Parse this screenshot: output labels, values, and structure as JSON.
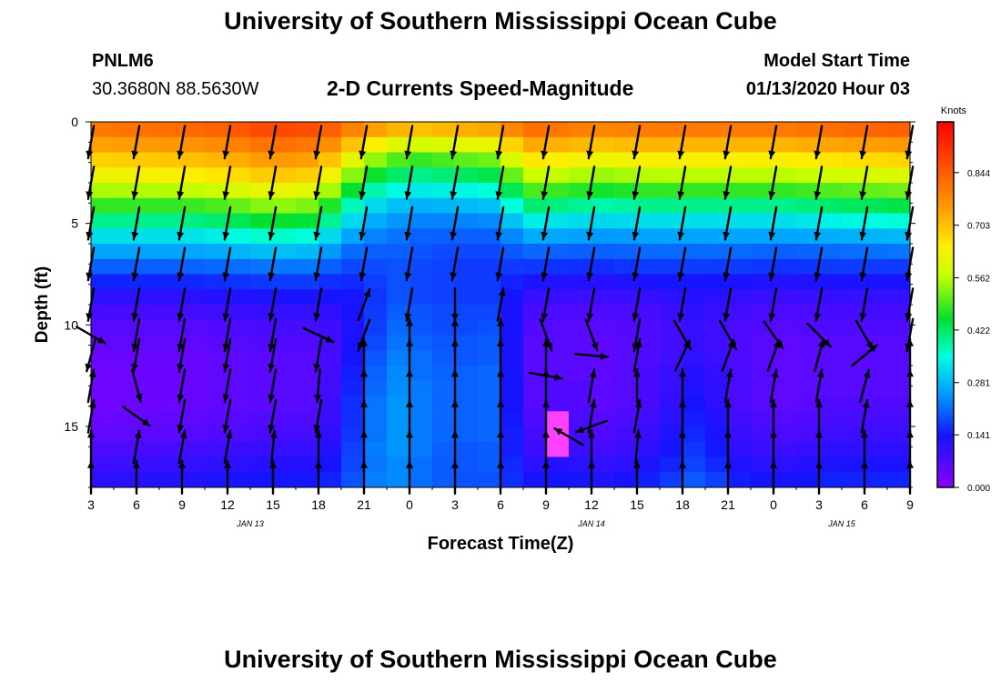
{
  "header": {
    "title_top": "University of Southern Mississippi Ocean Cube",
    "title_bottom": "University of Southern Mississippi Ocean Cube",
    "station_id": "PNLM6",
    "coords": "30.3680N 88.5630W",
    "subtitle": "2-D Currents Speed-Magnitude",
    "model_label": "Model Start Time",
    "model_time": "01/13/2020 Hour 03"
  },
  "chart_data": {
    "type": "heatmap",
    "title": "2-D Currents Speed-Magnitude",
    "xlabel": "Forecast Time(Z)",
    "ylabel": "Depth (ft)",
    "x_tick_labels": [
      "3",
      "6",
      "9",
      "12",
      "15",
      "18",
      "21",
      "0",
      "3",
      "6",
      "9",
      "12",
      "15",
      "18",
      "21",
      "0",
      "3",
      "6",
      "9"
    ],
    "date_labels": [
      {
        "label": "JAN 13",
        "tick_index": 3.5
      },
      {
        "label": "JAN 14",
        "tick_index": 11
      },
      {
        "label": "JAN 15",
        "tick_index": 16.5
      }
    ],
    "x_range_hours": [
      0,
      54
    ],
    "y_ticks": [
      0,
      5,
      10,
      15
    ],
    "ylim": [
      0,
      18
    ],
    "colorbar": {
      "unit": "Knots",
      "ticks": [
        0.0,
        0.141,
        0.281,
        0.422,
        0.562,
        0.703,
        0.844
      ],
      "tick_labels": [
        "0.000",
        "0.141",
        "0.281",
        "0.422",
        "0.562",
        "0.703",
        "0.844"
      ],
      "range": [
        0,
        0.98
      ]
    },
    "column_width_hours": 1.5,
    "depths": [
      0.375,
      1.125,
      1.875,
      2.625,
      3.375,
      4.125,
      4.875,
      5.625,
      6.375,
      7.125,
      7.875,
      8.625,
      9.375,
      10.125,
      10.875,
      11.625,
      12.375,
      13.125,
      13.875,
      14.625,
      15.375,
      16.125,
      16.875,
      17.625
    ],
    "profiles": [
      {
        "t": 0,
        "s": [
          0.8,
          0.74,
          0.68,
          0.62,
          0.55,
          0.48,
          0.4,
          0.32,
          0.26,
          0.2,
          0.15,
          0.11,
          0.08,
          0.06,
          0.05,
          0.04,
          0.03,
          0.03,
          0.03,
          0.04,
          0.05,
          0.07,
          0.09,
          0.11
        ]
      },
      {
        "t": 6,
        "s": [
          0.82,
          0.76,
          0.7,
          0.64,
          0.56,
          0.48,
          0.4,
          0.32,
          0.26,
          0.2,
          0.15,
          0.11,
          0.08,
          0.06,
          0.05,
          0.04,
          0.04,
          0.04,
          0.04,
          0.05,
          0.06,
          0.08,
          0.1,
          0.12
        ]
      },
      {
        "t": 9,
        "s": [
          0.84,
          0.78,
          0.72,
          0.66,
          0.58,
          0.5,
          0.42,
          0.34,
          0.27,
          0.21,
          0.16,
          0.12,
          0.09,
          0.07,
          0.06,
          0.05,
          0.05,
          0.05,
          0.05,
          0.06,
          0.07,
          0.09,
          0.11,
          0.13
        ]
      },
      {
        "t": 12,
        "s": [
          0.88,
          0.82,
          0.76,
          0.7,
          0.62,
          0.54,
          0.46,
          0.37,
          0.29,
          0.22,
          0.17,
          0.13,
          0.1,
          0.08,
          0.07,
          0.06,
          0.06,
          0.06,
          0.06,
          0.07,
          0.08,
          0.1,
          0.12,
          0.14
        ]
      },
      {
        "t": 15,
        "s": [
          0.86,
          0.8,
          0.74,
          0.68,
          0.6,
          0.52,
          0.44,
          0.35,
          0.28,
          0.22,
          0.17,
          0.13,
          0.1,
          0.08,
          0.07,
          0.06,
          0.06,
          0.06,
          0.06,
          0.07,
          0.08,
          0.1,
          0.12,
          0.14
        ]
      },
      {
        "t": 16.5,
        "s": [
          0.82,
          0.74,
          0.66,
          0.58,
          0.5,
          0.42,
          0.35,
          0.28,
          0.22,
          0.18,
          0.15,
          0.13,
          0.11,
          0.1,
          0.1,
          0.1,
          0.11,
          0.11,
          0.12,
          0.12,
          0.13,
          0.14,
          0.15,
          0.16
        ]
      },
      {
        "t": 18,
        "s": [
          0.76,
          0.66,
          0.56,
          0.48,
          0.4,
          0.33,
          0.28,
          0.24,
          0.2,
          0.18,
          0.16,
          0.15,
          0.15,
          0.15,
          0.16,
          0.17,
          0.18,
          0.19,
          0.2,
          0.2,
          0.2,
          0.21,
          0.21,
          0.22
        ]
      },
      {
        "t": 20,
        "s": [
          0.72,
          0.6,
          0.5,
          0.42,
          0.35,
          0.29,
          0.25,
          0.22,
          0.2,
          0.19,
          0.19,
          0.19,
          0.2,
          0.21,
          0.22,
          0.23,
          0.24,
          0.24,
          0.25,
          0.25,
          0.25,
          0.25,
          0.24,
          0.24
        ]
      },
      {
        "t": 22,
        "s": [
          0.7,
          0.58,
          0.48,
          0.4,
          0.33,
          0.27,
          0.23,
          0.2,
          0.19,
          0.18,
          0.18,
          0.18,
          0.19,
          0.19,
          0.2,
          0.21,
          0.21,
          0.22,
          0.22,
          0.22,
          0.22,
          0.22,
          0.21,
          0.21
        ]
      },
      {
        "t": 24,
        "s": [
          0.72,
          0.6,
          0.5,
          0.42,
          0.34,
          0.28,
          0.23,
          0.2,
          0.18,
          0.17,
          0.17,
          0.17,
          0.18,
          0.18,
          0.19,
          0.19,
          0.2,
          0.2,
          0.2,
          0.2,
          0.2,
          0.19,
          0.19,
          0.19
        ]
      },
      {
        "t": 27,
        "s": [
          0.74,
          0.62,
          0.52,
          0.44,
          0.36,
          0.29,
          0.24,
          0.2,
          0.18,
          0.17,
          0.17,
          0.17,
          0.18,
          0.19,
          0.2,
          0.2,
          0.21,
          0.21,
          0.21,
          0.21,
          0.21,
          0.2,
          0.2,
          0.19
        ]
      },
      {
        "t": 28.5,
        "s": [
          0.82,
          0.74,
          0.66,
          0.58,
          0.5,
          0.42,
          0.34,
          0.27,
          0.21,
          0.17,
          0.13,
          0.1,
          0.08,
          0.07,
          0.06,
          0.06,
          0.06,
          0.06,
          0.06,
          0.07,
          0.08,
          0.09,
          0.11,
          0.13
        ]
      },
      {
        "t": 31.5,
        "s": [
          0.8,
          0.72,
          0.64,
          0.56,
          0.48,
          0.4,
          0.32,
          0.26,
          0.2,
          0.16,
          0.12,
          0.09,
          0.07,
          0.06,
          0.06,
          0.06,
          0.06,
          0.07,
          0.07,
          0.08,
          0.09,
          0.1,
          0.12,
          0.14
        ]
      },
      {
        "t": 34,
        "s": [
          0.78,
          0.7,
          0.62,
          0.54,
          0.46,
          0.38,
          0.31,
          0.25,
          0.2,
          0.16,
          0.12,
          0.09,
          0.07,
          0.06,
          0.05,
          0.05,
          0.05,
          0.05,
          0.05,
          0.06,
          0.07,
          0.08,
          0.1,
          0.12
        ]
      },
      {
        "t": 37,
        "s": [
          0.8,
          0.72,
          0.64,
          0.56,
          0.48,
          0.4,
          0.32,
          0.26,
          0.21,
          0.17,
          0.13,
          0.1,
          0.08,
          0.07,
          0.07,
          0.07,
          0.08,
          0.08,
          0.08,
          0.09,
          0.1,
          0.11,
          0.13,
          0.15
        ]
      },
      {
        "t": 40,
        "s": [
          0.8,
          0.72,
          0.64,
          0.56,
          0.48,
          0.4,
          0.32,
          0.26,
          0.21,
          0.17,
          0.14,
          0.12,
          0.11,
          0.1,
          0.1,
          0.11,
          0.12,
          0.13,
          0.14,
          0.15,
          0.16,
          0.17,
          0.18,
          0.2
        ]
      },
      {
        "t": 43,
        "s": [
          0.8,
          0.72,
          0.64,
          0.56,
          0.48,
          0.4,
          0.32,
          0.26,
          0.21,
          0.17,
          0.13,
          0.1,
          0.08,
          0.07,
          0.07,
          0.07,
          0.07,
          0.07,
          0.07,
          0.08,
          0.09,
          0.1,
          0.12,
          0.14
        ]
      },
      {
        "t": 46,
        "s": [
          0.8,
          0.72,
          0.64,
          0.56,
          0.48,
          0.4,
          0.32,
          0.26,
          0.2,
          0.16,
          0.12,
          0.09,
          0.07,
          0.06,
          0.05,
          0.05,
          0.05,
          0.05,
          0.05,
          0.06,
          0.07,
          0.09,
          0.11,
          0.13
        ]
      },
      {
        "t": 49,
        "s": [
          0.82,
          0.74,
          0.66,
          0.58,
          0.5,
          0.42,
          0.34,
          0.27,
          0.21,
          0.17,
          0.13,
          0.1,
          0.08,
          0.07,
          0.06,
          0.06,
          0.06,
          0.06,
          0.07,
          0.08,
          0.09,
          0.11,
          0.13,
          0.15
        ]
      },
      {
        "t": 54,
        "s": [
          0.84,
          0.76,
          0.68,
          0.6,
          0.52,
          0.44,
          0.36,
          0.28,
          0.22,
          0.17,
          0.13,
          0.1,
          0.08,
          0.07,
          0.06,
          0.06,
          0.06,
          0.06,
          0.07,
          0.08,
          0.09,
          0.11,
          0.13,
          0.15
        ]
      }
    ],
    "magenta_patch": {
      "t_start": 30.75,
      "t_end": 31.5,
      "depth_start": 14.5,
      "depth_end": 16.5,
      "speed": 0.99
    },
    "vector_depths": [
      1,
      3,
      5,
      7,
      9,
      10.5,
      11.5,
      13,
      14.5,
      16,
      17.5
    ],
    "vector_times": [
      0,
      3,
      6,
      9,
      12,
      15,
      18,
      21,
      24,
      27,
      30,
      33,
      36,
      39,
      42,
      45,
      48,
      51,
      54
    ],
    "vector_dir_default_deg": 190,
    "vector_overrides": [
      {
        "t": 0,
        "d": 10.5,
        "dir": 120
      },
      {
        "t": 0,
        "d": 11.5,
        "dir": 195
      },
      {
        "t": 3,
        "d": 13,
        "dir": 165
      },
      {
        "t": 3,
        "d": 14.5,
        "dir": 125
      },
      {
        "t": 9,
        "d": 14.5,
        "dir": 190
      },
      {
        "t": 15,
        "d": 13,
        "dir": 185
      },
      {
        "t": 15,
        "d": 14.5,
        "dir": 190
      },
      {
        "t": 15,
        "d": 10.5,
        "dir": 115
      },
      {
        "t": 18,
        "d": 9,
        "dir": 20
      },
      {
        "t": 18,
        "d": 10.5,
        "dir": 200
      },
      {
        "t": 18,
        "d": 11.5,
        "dir": 0
      },
      {
        "t": 18,
        "d": 13,
        "dir": 0
      },
      {
        "t": 18,
        "d": 14.5,
        "dir": 0
      },
      {
        "t": 18,
        "d": 16,
        "dir": 0
      },
      {
        "t": 18,
        "d": 17.5,
        "dir": 0
      },
      {
        "t": 21,
        "d": 10.5,
        "dir": 0
      },
      {
        "t": 21,
        "d": 11.5,
        "dir": 0
      },
      {
        "t": 21,
        "d": 13,
        "dir": 0
      },
      {
        "t": 21,
        "d": 14.5,
        "dir": 0
      },
      {
        "t": 21,
        "d": 16,
        "dir": 0
      },
      {
        "t": 21,
        "d": 17.5,
        "dir": 0
      },
      {
        "t": 24,
        "d": 9,
        "dir": 180
      },
      {
        "t": 24,
        "d": 10.5,
        "dir": 0
      },
      {
        "t": 24,
        "d": 11.5,
        "dir": 0
      },
      {
        "t": 24,
        "d": 13,
        "dir": 0
      },
      {
        "t": 24,
        "d": 14.5,
        "dir": 0
      },
      {
        "t": 24,
        "d": 16,
        "dir": 0
      },
      {
        "t": 24,
        "d": 17.5,
        "dir": 0
      },
      {
        "t": 27,
        "d": 9,
        "dir": 10
      },
      {
        "t": 27,
        "d": 10.5,
        "dir": 0
      },
      {
        "t": 27,
        "d": 11.5,
        "dir": 0
      },
      {
        "t": 27,
        "d": 13,
        "dir": 0
      },
      {
        "t": 27,
        "d": 14.5,
        "dir": 0
      },
      {
        "t": 27,
        "d": 16,
        "dir": 0
      },
      {
        "t": 27,
        "d": 17.5,
        "dir": 0
      },
      {
        "t": 30,
        "d": 10.5,
        "dir": 160
      },
      {
        "t": 30,
        "d": 11.5,
        "dir": 0
      },
      {
        "t": 30,
        "d": 13,
        "dir": 0
      },
      {
        "t": 30,
        "d": 14.5,
        "dir": 0
      },
      {
        "t": 30,
        "d": 16,
        "dir": 0
      },
      {
        "t": 30,
        "d": 17.5,
        "dir": 0
      },
      {
        "t": 33,
        "d": 10.5,
        "dir": 160
      },
      {
        "t": 33,
        "d": 11.5,
        "dir": 95
      },
      {
        "t": 33,
        "d": 13,
        "dir": 10
      },
      {
        "t": 33,
        "d": 14.5,
        "dir": 10
      },
      {
        "t": 33,
        "d": 16,
        "dir": 0
      },
      {
        "t": 33,
        "d": 17.5,
        "dir": 0
      },
      {
        "t": 36,
        "d": 11.5,
        "dir": 10
      },
      {
        "t": 36,
        "d": 13,
        "dir": 0
      },
      {
        "t": 36,
        "d": 14.5,
        "dir": 10
      },
      {
        "t": 36,
        "d": 16,
        "dir": 5
      },
      {
        "t": 36,
        "d": 17.5,
        "dir": 0
      },
      {
        "t": 39,
        "d": 10.5,
        "dir": 150
      },
      {
        "t": 39,
        "d": 11.5,
        "dir": 25
      },
      {
        "t": 39,
        "d": 13,
        "dir": 0
      },
      {
        "t": 39,
        "d": 14.5,
        "dir": 0
      },
      {
        "t": 39,
        "d": 16,
        "dir": 0
      },
      {
        "t": 39,
        "d": 17.5,
        "dir": 0
      },
      {
        "t": 42,
        "d": 10.5,
        "dir": 150
      },
      {
        "t": 42,
        "d": 11.5,
        "dir": 20
      },
      {
        "t": 42,
        "d": 13,
        "dir": 10
      },
      {
        "t": 42,
        "d": 14.5,
        "dir": 0
      },
      {
        "t": 42,
        "d": 16,
        "dir": 0
      },
      {
        "t": 42,
        "d": 17.5,
        "dir": 0
      },
      {
        "t": 45,
        "d": 10.5,
        "dir": 145
      },
      {
        "t": 45,
        "d": 11.5,
        "dir": 20
      },
      {
        "t": 45,
        "d": 13,
        "dir": 10
      },
      {
        "t": 45,
        "d": 14.5,
        "dir": 0
      },
      {
        "t": 45,
        "d": 16,
        "dir": 0
      },
      {
        "t": 45,
        "d": 17.5,
        "dir": 0
      },
      {
        "t": 48,
        "d": 10.5,
        "dir": 135
      },
      {
        "t": 48,
        "d": 11.5,
        "dir": 15
      },
      {
        "t": 48,
        "d": 13,
        "dir": 10
      },
      {
        "t": 48,
        "d": 14.5,
        "dir": 0
      },
      {
        "t": 48,
        "d": 16,
        "dir": 0
      },
      {
        "t": 48,
        "d": 17.5,
        "dir": 0
      },
      {
        "t": 51,
        "d": 10.5,
        "dir": 150
      },
      {
        "t": 51,
        "d": 11.5,
        "dir": 50
      },
      {
        "t": 51,
        "d": 13,
        "dir": 15
      },
      {
        "t": 51,
        "d": 14.5,
        "dir": 10
      },
      {
        "t": 51,
        "d": 16,
        "dir": 0
      },
      {
        "t": 51,
        "d": 17.5,
        "dir": 0
      },
      {
        "t": 54,
        "d": 10.5,
        "dir": 190
      },
      {
        "t": 54,
        "d": 11.5,
        "dir": 0
      },
      {
        "t": 54,
        "d": 13,
        "dir": 0
      },
      {
        "t": 54,
        "d": 14.5,
        "dir": 0
      },
      {
        "t": 54,
        "d": 16,
        "dir": 0
      },
      {
        "t": 54,
        "d": 17.5,
        "dir": 0
      },
      {
        "t": 3,
        "d": 16,
        "dir": 10
      },
      {
        "t": 3,
        "d": 17.5,
        "dir": 0
      },
      {
        "t": 6,
        "d": 16,
        "dir": 10
      },
      {
        "t": 6,
        "d": 17.5,
        "dir": 0
      },
      {
        "t": 9,
        "d": 16,
        "dir": 10
      },
      {
        "t": 9,
        "d": 17.5,
        "dir": 0
      },
      {
        "t": 12,
        "d": 16,
        "dir": 5
      },
      {
        "t": 12,
        "d": 17.5,
        "dir": 0
      },
      {
        "t": 15,
        "d": 16,
        "dir": 0
      },
      {
        "t": 15,
        "d": 17.5,
        "dir": 0
      },
      {
        "t": 0,
        "d": 16,
        "dir": 0
      },
      {
        "t": 0,
        "d": 17.5,
        "dir": 0
      },
      {
        "t": 0,
        "d": 13,
        "dir": 10
      },
      {
        "t": 0,
        "d": 14.5,
        "dir": 10
      },
      {
        "t": 30,
        "d": 12.5,
        "dir": 100
      },
      {
        "t": 31.5,
        "d": 15.5,
        "dir": 300
      },
      {
        "t": 33,
        "d": 15,
        "dir": 250
      }
    ]
  }
}
